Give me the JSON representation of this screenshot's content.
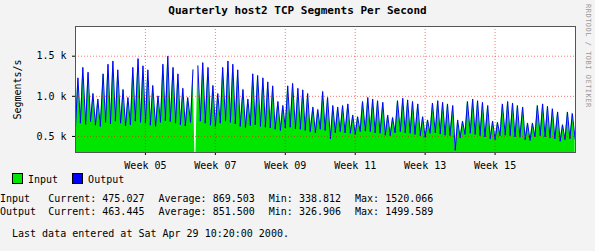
{
  "chart_data": {
    "type": "area",
    "title": "Quarterly host2 TCP Segments Per Second",
    "y_label": "Segments/s",
    "annotations": [
      "RRDTOOL / TOBI OETIKER"
    ],
    "caption": "Last data entered at Sat Apr 29 10:20:00 2000.",
    "grid": true,
    "legend": "bottom-left",
    "xlim": [
      3,
      17.3
    ],
    "xticks": [
      {
        "value": 5,
        "label": "Week 05"
      },
      {
        "value": 7,
        "label": "Week 07"
      },
      {
        "value": 9,
        "label": "Week 09"
      },
      {
        "value": 11,
        "label": "Week 11"
      },
      {
        "value": 13,
        "label": "Week 13"
      },
      {
        "value": 15,
        "label": "Week 15"
      }
    ],
    "ylim": [
      300,
      1870
    ],
    "yticks": [
      {
        "value": 500,
        "label": "0.5 k"
      },
      {
        "value": 1000,
        "label": "1.0 k"
      },
      {
        "value": 1500,
        "label": "1.5 k"
      }
    ],
    "x": [
      3,
      3.07,
      3.14,
      3.21,
      3.29,
      3.36,
      3.43,
      3.5,
      3.57,
      3.64,
      3.71,
      3.79,
      3.86,
      3.93,
      4,
      4.07,
      4.14,
      4.21,
      4.29,
      4.36,
      4.43,
      4.5,
      4.57,
      4.64,
      4.71,
      4.79,
      4.86,
      4.93,
      5,
      5.07,
      5.14,
      5.21,
      5.29,
      5.36,
      5.43,
      5.5,
      5.57,
      5.64,
      5.71,
      5.79,
      5.86,
      5.93,
      6,
      6.07,
      6.14,
      6.21,
      6.29,
      6.36,
      6.43,
      6.5,
      6.57,
      6.64,
      6.71,
      6.79,
      6.86,
      6.93,
      7,
      7.07,
      7.14,
      7.21,
      7.29,
      7.36,
      7.43,
      7.5,
      7.57,
      7.64,
      7.71,
      7.79,
      7.86,
      7.93,
      8,
      8.07,
      8.14,
      8.21,
      8.29,
      8.36,
      8.43,
      8.5,
      8.57,
      8.64,
      8.71,
      8.79,
      8.86,
      8.93,
      9,
      9.07,
      9.14,
      9.21,
      9.29,
      9.36,
      9.43,
      9.5,
      9.57,
      9.64,
      9.71,
      9.79,
      9.86,
      9.93,
      10,
      10.07,
      10.14,
      10.21,
      10.29,
      10.36,
      10.43,
      10.5,
      10.57,
      10.64,
      10.71,
      10.79,
      10.86,
      10.93,
      11,
      11.07,
      11.14,
      11.21,
      11.29,
      11.36,
      11.43,
      11.5,
      11.57,
      11.64,
      11.71,
      11.79,
      11.86,
      11.93,
      12,
      12.07,
      12.14,
      12.21,
      12.29,
      12.36,
      12.43,
      12.5,
      12.57,
      12.64,
      12.71,
      12.79,
      12.86,
      12.93,
      13,
      13.07,
      13.14,
      13.21,
      13.29,
      13.36,
      13.43,
      13.5,
      13.57,
      13.64,
      13.71,
      13.79,
      13.86,
      13.93,
      14,
      14.07,
      14.14,
      14.21,
      14.29,
      14.36,
      14.43,
      14.5,
      14.57,
      14.64,
      14.71,
      14.79,
      14.86,
      14.93,
      15,
      15.07,
      15.14,
      15.21,
      15.29,
      15.36,
      15.43,
      15.5,
      15.57,
      15.64,
      15.71,
      15.79,
      15.86,
      15.93,
      16,
      16.07,
      16.14,
      16.21,
      16.29,
      16.36,
      16.43,
      16.5,
      16.57,
      16.64,
      16.71,
      16.79,
      16.86,
      16.93,
      17,
      17.07,
      17.14,
      17.21,
      17.29
    ],
    "series": [
      {
        "name": "Input",
        "type": "area",
        "color": "#00e600",
        "values": [
          620,
          1250,
          680,
          1380,
          660,
          1320,
          700,
          1050,
          650,
          980,
          640,
          1300,
          690,
          1420,
          670,
          1460,
          700,
          1350,
          680,
          1100,
          640,
          1000,
          660,
          1380,
          700,
          1490,
          690,
          1400,
          680,
          1350,
          650,
          1150,
          640,
          1020,
          690,
          1420,
          710,
          1520.066,
          700,
          1380,
          680,
          1300,
          660,
          1120,
          640,
          1000,
          690,
          1350,
          null,
          1400,
          700,
          1440,
          680,
          1380,
          650,
          1150,
          640,
          1050,
          680,
          1380,
          700,
          1460,
          690,
          1420,
          670,
          1350,
          640,
          1100,
          620,
          980,
          650,
          1300,
          660,
          1280,
          640,
          1250,
          630,
          1200,
          620,
          1150,
          600,
          950,
          590,
          900,
          620,
          1150,
          630,
          1180,
          610,
          1120,
          600,
          1100,
          590,
          1050,
          570,
          880,
          560,
          850,
          600,
          1080,
          590,
          1000,
          480,
          900,
          560,
          880,
          570,
          900,
          560,
          920,
          550,
          780,
          540,
          760,
          570,
          950,
          580,
          1000,
          570,
          980,
          560,
          960,
          550,
          940,
          530,
          780,
          520,
          750,
          560,
          960,
          570,
          990,
          560,
          970,
          550,
          950,
          540,
          920,
          520,
          760,
          500,
          720,
          550,
          930,
          560,
          960,
          540,
          940,
          530,
          920,
          520,
          900,
          338.812,
          720,
          490,
          700,
          540,
          950,
          550,
          980,
          540,
          960,
          520,
          940,
          510,
          900,
          480,
          700,
          470,
          690,
          520,
          920,
          530,
          950,
          520,
          930,
          510,
          900,
          500,
          880,
          470,
          680,
          460,
          680,
          510,
          900,
          520,
          920,
          510,
          890,
          490,
          860,
          480,
          820,
          450,
          660,
          470,
          820,
          480,
          800,
          475.027
        ]
      },
      {
        "name": "Output",
        "type": "line",
        "color": "#0000ff",
        "values": [
          610,
          1230,
          665,
          1360,
          650,
          1300,
          685,
          1035,
          640,
          965,
          625,
          1280,
          675,
          1400,
          655,
          1440,
          690,
          1330,
          665,
          1085,
          630,
          985,
          645,
          1360,
          690,
          1470,
          675,
          1380,
          665,
          1330,
          640,
          1135,
          625,
          1005,
          675,
          1400,
          695,
          1499.589,
          685,
          1360,
          665,
          1280,
          645,
          1100,
          630,
          985,
          675,
          1330,
          null,
          1380,
          690,
          1420,
          665,
          1360,
          640,
          1135,
          625,
          1035,
          665,
          1360,
          690,
          1440,
          675,
          1400,
          655,
          1330,
          625,
          1085,
          610,
          965,
          635,
          1280,
          645,
          1260,
          625,
          1230,
          615,
          1180,
          605,
          1130,
          590,
          935,
          575,
          885,
          605,
          1130,
          615,
          1160,
          595,
          1100,
          590,
          1080,
          575,
          1035,
          560,
          865,
          545,
          835,
          590,
          1060,
          575,
          985,
          470,
          885,
          545,
          865,
          560,
          885,
          545,
          905,
          540,
          765,
          525,
          745,
          560,
          935,
          565,
          985,
          560,
          965,
          545,
          945,
          540,
          925,
          515,
          765,
          510,
          735,
          545,
          945,
          560,
          975,
          545,
          955,
          540,
          935,
          525,
          905,
          510,
          745,
          490,
          705,
          540,
          915,
          545,
          945,
          530,
          925,
          515,
          905,
          510,
          885,
          326.906,
          705,
          480,
          690,
          525,
          935,
          540,
          965,
          525,
          945,
          510,
          925,
          495,
          885,
          470,
          690,
          460,
          675,
          510,
          905,
          515,
          935,
          510,
          915,
          495,
          885,
          490,
          865,
          460,
          665,
          450,
          665,
          495,
          885,
          510,
          905,
          495,
          875,
          480,
          845,
          470,
          805,
          440,
          645,
          460,
          805,
          470,
          785,
          463.445
        ]
      }
    ],
    "stats": {
      "columns": [
        "Current:",
        "Average:",
        "Min:",
        "Max:"
      ],
      "rows": [
        {
          "name": "Input",
          "values": [
            475.027,
            869.503,
            338.812,
            1520.066
          ],
          "value_labels": [
            "475.027",
            "869.503",
            "338.812",
            "1520.066"
          ]
        },
        {
          "name": "Output",
          "values": [
            463.445,
            851.5,
            326.906,
            1499.589
          ],
          "value_labels": [
            "463.445",
            "851.500",
            "326.906",
            "1499.589"
          ]
        }
      ]
    }
  }
}
